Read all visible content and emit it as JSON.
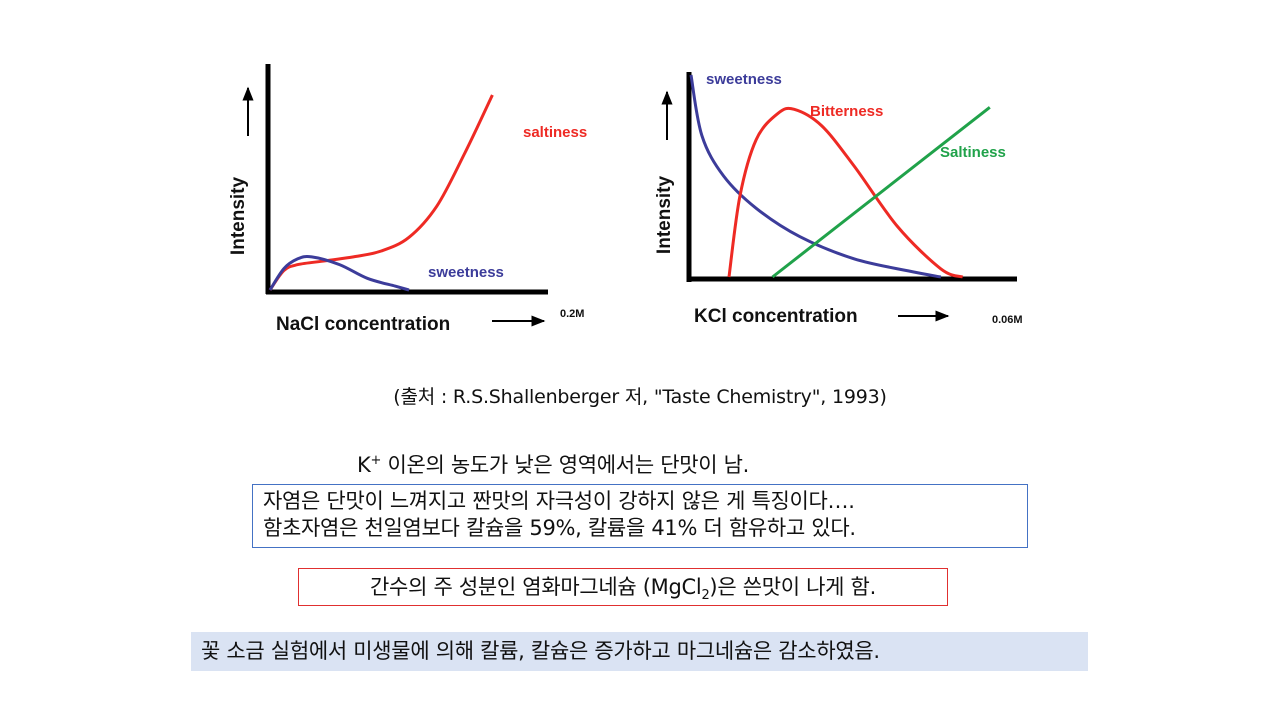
{
  "chart_data": [
    {
      "type": "line",
      "xlabel": "NaCl concentration",
      "ylabel": "Intensity",
      "x_end_label": "0.2M",
      "xlim": [
        0,
        0.2
      ],
      "ylim": [
        0,
        1
      ],
      "grid": false,
      "series": [
        {
          "name": "saltiness",
          "color": "#ee2a24",
          "points": [
            [
              0,
              0
            ],
            [
              0.01,
              0.1
            ],
            [
              0.02,
              0.13
            ],
            [
              0.04,
              0.15
            ],
            [
              0.06,
              0.17
            ],
            [
              0.08,
              0.2
            ],
            [
              0.1,
              0.27
            ],
            [
              0.12,
              0.43
            ],
            [
              0.14,
              0.7
            ],
            [
              0.16,
              1.0
            ]
          ]
        },
        {
          "name": "sweetness",
          "color": "#3c3c9a",
          "points": [
            [
              0,
              0
            ],
            [
              0.01,
              0.11
            ],
            [
              0.02,
              0.16
            ],
            [
              0.03,
              0.17
            ],
            [
              0.05,
              0.13
            ],
            [
              0.07,
              0.06
            ],
            [
              0.09,
              0.02
            ],
            [
              0.1,
              0.0
            ]
          ]
        }
      ]
    },
    {
      "type": "line",
      "xlabel": "KCl concentration",
      "ylabel": "Intensity",
      "x_end_label": "0.06M",
      "xlim": [
        0,
        0.06
      ],
      "ylim": [
        0,
        1
      ],
      "grid": false,
      "series": [
        {
          "name": "sweetness",
          "color": "#3c3c9a",
          "points": [
            [
              0,
              1.0
            ],
            [
              0.002,
              0.7
            ],
            [
              0.006,
              0.5
            ],
            [
              0.012,
              0.34
            ],
            [
              0.02,
              0.2
            ],
            [
              0.03,
              0.09
            ],
            [
              0.04,
              0.03
            ],
            [
              0.046,
              0.0
            ]
          ]
        },
        {
          "name": "Bitterness",
          "color": "#ee2a24",
          "points": [
            [
              0.007,
              0
            ],
            [
              0.009,
              0.4
            ],
            [
              0.012,
              0.68
            ],
            [
              0.016,
              0.81
            ],
            [
              0.019,
              0.83
            ],
            [
              0.024,
              0.75
            ],
            [
              0.03,
              0.55
            ],
            [
              0.038,
              0.25
            ],
            [
              0.046,
              0.04
            ],
            [
              0.05,
              0
            ]
          ]
        },
        {
          "name": "Saltiness",
          "color": "#20a24a",
          "points": [
            [
              0.015,
              0
            ],
            [
              0.055,
              0.84
            ]
          ]
        }
      ]
    }
  ],
  "citation": "(출처 : R.S.Shallenberger 저, \"Taste Chemistry\", 1993)",
  "note_k": {
    "prefix": "K",
    "superscript": "+",
    "text": " 이온의 농도가 낮은 영역에서는 단맛이 남."
  },
  "box_blue": {
    "line1": "자염은 단맛이 느껴지고 짠맛의 자극성이 강하지 않은 게 특징이다….",
    "line2": "함초자염은 천일염보다 칼슘을 59%, 칼륨을 41% 더 함유하고 있다."
  },
  "box_red": {
    "text_before": "간수의 주 성분인 염화마그네슘 (MgCl",
    "subscript": "2",
    "text_after": ")은 쓴맛이 나게 함."
  },
  "box_fill": {
    "text": "꽃 소금 실험에서 미생물에 의해 칼륨, 칼슘은 증가하고 마그네슘은 감소하였음."
  }
}
